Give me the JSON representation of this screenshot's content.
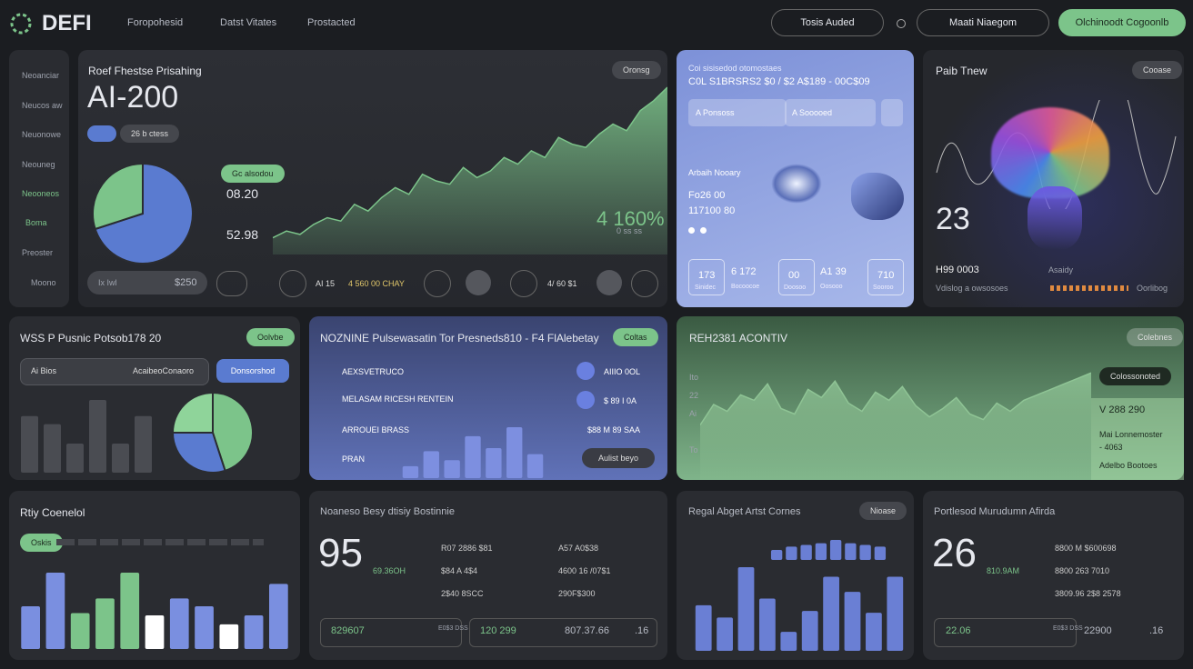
{
  "header": {
    "logo": "DEFI",
    "nav": [
      "Foropohesid",
      "Datst Vitates",
      "Prostacted"
    ],
    "buttons": [
      "Tosis Auded",
      "Maati Niaegom",
      "Olchinoodt Cogoonlb"
    ]
  },
  "sidebar": [
    "Neoanciar",
    "Neucos aw",
    "Neuonowe",
    "Neouneg",
    "Neooneos",
    "Boma",
    "Preoster",
    "Moono"
  ],
  "pricing": {
    "title": "Roef Fhestse Prisahing",
    "badge": "Oronsg",
    "big": "AI-200",
    "pill": "26 b ctess",
    "tag": "Gc alsodou",
    "stat1": "08.20",
    "stat2": "52.98",
    "pct": "4 160%",
    "pct_sub": "0 ss ss",
    "field": "$250",
    "field_label": "Ix Iwl",
    "ctrl": "AI 15",
    "ctrl2": "4 560 00 CHAY",
    "ctrl3": "4/ 60 $1",
    "pie": {
      "values": [
        70,
        30
      ],
      "colors": [
        "#5a7bd0",
        "#7cc48a"
      ]
    },
    "area": {
      "values": [
        10,
        14,
        12,
        18,
        22,
        20,
        30,
        26,
        34,
        40,
        36,
        48,
        44,
        42,
        52,
        46,
        50,
        58,
        54,
        62,
        58,
        70,
        66,
        64,
        72,
        78,
        74,
        86,
        92,
        100
      ],
      "color": "#7cc48a"
    }
  },
  "overview": {
    "kicker": "Coi sisisedod otomostaes",
    "title": "C0L S1BRSRS2 $0 / $2 A$189 - 00C$09",
    "chips": [
      "A Ponsoss",
      "A Sooooed"
    ],
    "section": "Arbaih Nooary",
    "line1": "Fo26 00",
    "line2": "117100 80",
    "boxes": [
      {
        "value": "173",
        "label": "Sinidec"
      },
      {
        "value": "6 172",
        "label": "Bocoocoe"
      },
      {
        "value": "00",
        "label": "Doosoo"
      },
      {
        "value": "A1 39",
        "label": "Oosooo"
      },
      {
        "value": "710",
        "label": "Sooroo"
      }
    ]
  },
  "brain": {
    "title": "Paib Tnew",
    "badge": "Cooase",
    "big": "23",
    "stat": "H99 0003",
    "stat_label": "Asaidy",
    "foot": "Vdislog a owsosoes",
    "foot_right": "Oorlibog"
  },
  "product": {
    "title": "WSS P Pusnic Potsob178 20",
    "badge": "Oolvbe",
    "search": "Ai Bios",
    "search_right": "AcaibeoConaoro",
    "button": "Donsorshod",
    "bars": {
      "values": [
        35,
        30,
        18,
        45,
        18,
        35
      ],
      "color": "#4a4c52"
    },
    "pie": {
      "values": [
        45,
        30,
        25
      ],
      "colors": [
        "#7cc48a",
        "#5a7bd0",
        "#8fd49a"
      ]
    }
  },
  "pulse": {
    "title": "NOZNINE Pulsewasatin Tor Presneds810 - F4 FlAlebetay",
    "badge": "Coltas",
    "items": [
      "AEXSVETRUCO",
      "MELASAM RICESH RENTEIN",
      "ARROUEI BRASS",
      "PRAN"
    ],
    "values": [
      "AIIIO 0OL",
      "$ 89 I 0A",
      "$88 M 89 SAA"
    ],
    "button": "Aulist beyo",
    "bars": {
      "values": [
        20,
        45,
        30,
        70,
        50,
        85,
        40
      ],
      "color": "#7d8fe0"
    }
  },
  "activity": {
    "title": "REH2381 ACONTIV",
    "badge": "Colebnes",
    "tag": "Colossonoted",
    "value": "V 288 290",
    "label": "Mai Lonnemoster",
    "delta": "- 4063",
    "foot": "Adelbo Bootoes",
    "axis": [
      "Ito",
      "22",
      "Ai",
      "To"
    ],
    "area": {
      "values": [
        40,
        55,
        50,
        62,
        58,
        70,
        52,
        48,
        66,
        60,
        72,
        56,
        50,
        64,
        58,
        68,
        54,
        46,
        52,
        60,
        48,
        44,
        56,
        50,
        58,
        62,
        66,
        70,
        74,
        78
      ],
      "color": "#8fc495"
    }
  },
  "control": {
    "title": "Rtiy Coenelol",
    "badge": "Oskis",
    "bars": {
      "values": [
        38,
        68,
        32,
        45,
        68,
        30,
        45,
        38,
        22,
        30,
        58
      ],
      "colors": [
        "#7a8fe0",
        "#7a8fe0",
        "#7cc48a",
        "#7cc48a",
        "#7cc48a",
        "#ffffff",
        "#7a8fe0",
        "#7a8fe0",
        "#ffffff",
        "#7a8fe0",
        "#7a8fe0"
      ]
    }
  },
  "business": {
    "title": "Noaneso Besy dtisiy Bostinnie",
    "big": "95",
    "sub": "69.36OH",
    "list": [
      "R07 2886 $81",
      "$84 A 4$4",
      "2$40 8SCC",
      "A57 A0$38",
      "4600 16 /07$1",
      "290F$300"
    ],
    "box1": "829607",
    "box1_label": "E0$3 DSS",
    "box2": "120 299",
    "box3": "807.37.66",
    "box4": ".16"
  },
  "regal": {
    "title": "Regal Abget Artst Cornes",
    "badge": "Nioase",
    "mini": {
      "values": [
        6,
        8,
        9,
        10,
        12,
        10,
        9,
        8
      ],
      "color": "#6a7fd4"
    },
    "bars": {
      "values": [
        48,
        35,
        88,
        55,
        20,
        42,
        78,
        62,
        40,
        78
      ],
      "color": "#6a7fd4"
    }
  },
  "portfolio": {
    "title": "Portlesod Murudumn Afirda",
    "big": "26",
    "sub": "810.9AM",
    "list": [
      "8800 M $600698",
      "8800 263 7010",
      "3809.96 2$8 2578"
    ],
    "box1": "22.06",
    "box1_label": "E0$3 DSS",
    "box2": "22900",
    "box3": ".16"
  }
}
